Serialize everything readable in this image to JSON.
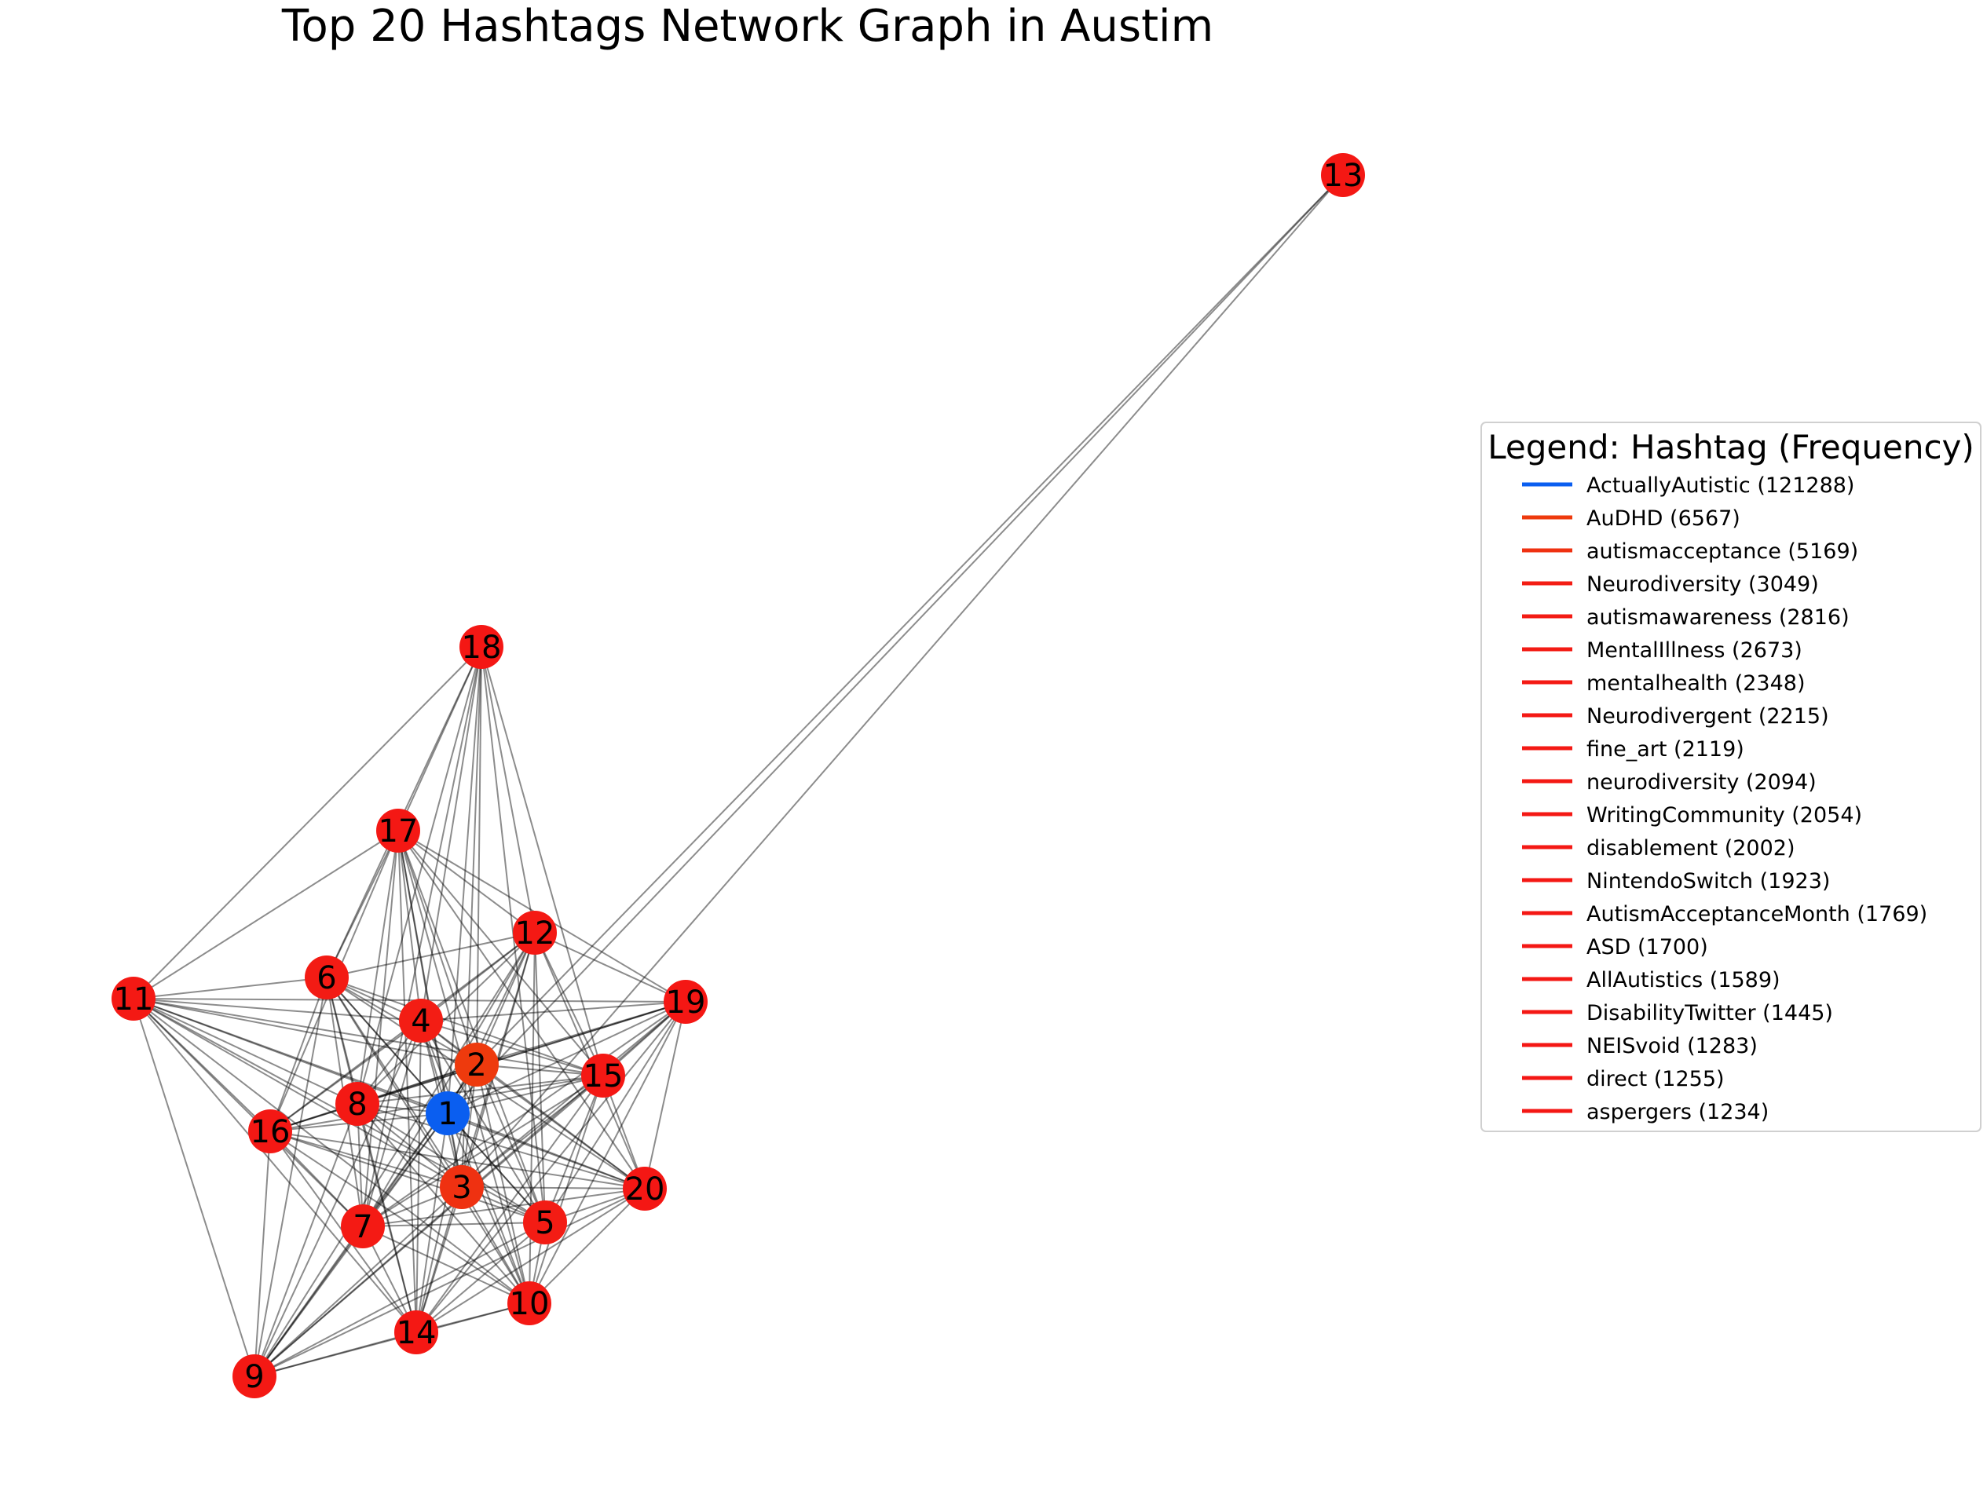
{
  "title": "Top 20 Hashtags Network Graph in Austim",
  "legend": {
    "title": "Legend: Hashtag (Frequency)",
    "placement": "right",
    "entries": [
      {
        "id": 1,
        "label": "ActuallyAutistic (121288)",
        "color": "#0a5ef0"
      },
      {
        "id": 2,
        "label": "AuDHD (6567)",
        "color": "#ee3a0d"
      },
      {
        "id": 3,
        "label": "autismacceptance (5169)",
        "color": "#ef3111"
      },
      {
        "id": 4,
        "label": "Neurodiversity (3049)",
        "color": "#f31d14"
      },
      {
        "id": 5,
        "label": "autismawareness (2816)",
        "color": "#f31c14"
      },
      {
        "id": 6,
        "label": "MentalIllness (2673)",
        "color": "#f31b14"
      },
      {
        "id": 7,
        "label": "mentalhealth (2348)",
        "color": "#f41a14"
      },
      {
        "id": 8,
        "label": "Neurodivergent (2215)",
        "color": "#f41914"
      },
      {
        "id": 9,
        "label": "fine_art (2119)",
        "color": "#f41914"
      },
      {
        "id": 10,
        "label": "neurodiversity (2094)",
        "color": "#f41914"
      },
      {
        "id": 11,
        "label": "WritingCommunity (2054)",
        "color": "#f41914"
      },
      {
        "id": 12,
        "label": "disablement (2002)",
        "color": "#f41914"
      },
      {
        "id": 13,
        "label": "NintendoSwitch (1923)",
        "color": "#f41814"
      },
      {
        "id": 14,
        "label": "AutismAcceptanceMonth (1769)",
        "color": "#f41814"
      },
      {
        "id": 15,
        "label": "ASD (1700)",
        "color": "#f41814"
      },
      {
        "id": 16,
        "label": "AllAutistics (1589)",
        "color": "#f41814"
      },
      {
        "id": 17,
        "label": "DisabilityTwitter (1445)",
        "color": "#f41814"
      },
      {
        "id": 18,
        "label": "NEISvoid (1283)",
        "color": "#f41714"
      },
      {
        "id": 19,
        "label": "direct (1255)",
        "color": "#f41714"
      },
      {
        "id": 20,
        "label": "aspergers (1234)",
        "color": "#f41714"
      }
    ]
  },
  "graph": {
    "nodes": [
      {
        "id": 1,
        "label": "1",
        "color": "#0a5ef0"
      },
      {
        "id": 2,
        "label": "2",
        "color": "#ee3a0d"
      },
      {
        "id": 3,
        "label": "3",
        "color": "#ef3111"
      },
      {
        "id": 4,
        "label": "4",
        "color": "#f31d14"
      },
      {
        "id": 5,
        "label": "5",
        "color": "#f31c14"
      },
      {
        "id": 6,
        "label": "6",
        "color": "#f31b14"
      },
      {
        "id": 7,
        "label": "7",
        "color": "#f41a14"
      },
      {
        "id": 8,
        "label": "8",
        "color": "#f41914"
      },
      {
        "id": 9,
        "label": "9",
        "color": "#f41914"
      },
      {
        "id": 10,
        "label": "10",
        "color": "#f41914"
      },
      {
        "id": 11,
        "label": "11",
        "color": "#f41914"
      },
      {
        "id": 12,
        "label": "12",
        "color": "#f41914"
      },
      {
        "id": 13,
        "label": "13",
        "color": "#f41814"
      },
      {
        "id": 14,
        "label": "14",
        "color": "#f41814"
      },
      {
        "id": 15,
        "label": "15",
        "color": "#f41814"
      },
      {
        "id": 16,
        "label": "16",
        "color": "#f41814"
      },
      {
        "id": 17,
        "label": "17",
        "color": "#f41814"
      },
      {
        "id": 18,
        "label": "18",
        "color": "#f41714"
      },
      {
        "id": 19,
        "label": "19",
        "color": "#f41714"
      },
      {
        "id": 20,
        "label": "20",
        "color": "#f41714"
      }
    ],
    "edges": [
      [
        13,
        1
      ],
      [
        13,
        2
      ],
      [
        13,
        3
      ],
      [
        18,
        11
      ],
      [
        18,
        17
      ],
      [
        18,
        6
      ],
      [
        18,
        4
      ],
      [
        18,
        2
      ],
      [
        18,
        8
      ],
      [
        18,
        1
      ],
      [
        18,
        3
      ],
      [
        18,
        7
      ],
      [
        18,
        5
      ],
      [
        18,
        15
      ],
      [
        18,
        12
      ],
      [
        17,
        11
      ],
      [
        17,
        6
      ],
      [
        17,
        4
      ],
      [
        17,
        2
      ],
      [
        17,
        8
      ],
      [
        17,
        1
      ],
      [
        17,
        16
      ],
      [
        17,
        3
      ],
      [
        17,
        7
      ],
      [
        17,
        5
      ],
      [
        17,
        15
      ],
      [
        17,
        12
      ],
      [
        17,
        19
      ],
      [
        17,
        20
      ],
      [
        17,
        14
      ],
      [
        17,
        10
      ],
      [
        12,
        6
      ],
      [
        12,
        4
      ],
      [
        12,
        2
      ],
      [
        12,
        8
      ],
      [
        12,
        1
      ],
      [
        12,
        16
      ],
      [
        12,
        3
      ],
      [
        12,
        7
      ],
      [
        12,
        5
      ],
      [
        12,
        15
      ],
      [
        12,
        19
      ],
      [
        12,
        20
      ],
      [
        12,
        9
      ],
      [
        12,
        14
      ],
      [
        12,
        10
      ],
      [
        11,
        6
      ],
      [
        11,
        4
      ],
      [
        11,
        2
      ],
      [
        11,
        8
      ],
      [
        11,
        1
      ],
      [
        11,
        16
      ],
      [
        11,
        3
      ],
      [
        11,
        7
      ],
      [
        11,
        5
      ],
      [
        11,
        15
      ],
      [
        11,
        19
      ],
      [
        11,
        9
      ],
      [
        11,
        14
      ],
      [
        11,
        10
      ],
      [
        11,
        20
      ],
      [
        6,
        4
      ],
      [
        6,
        2
      ],
      [
        6,
        8
      ],
      [
        6,
        1
      ],
      [
        6,
        16
      ],
      [
        6,
        3
      ],
      [
        6,
        7
      ],
      [
        6,
        5
      ],
      [
        6,
        15
      ],
      [
        6,
        9
      ],
      [
        6,
        14
      ],
      [
        6,
        10
      ],
      [
        6,
        20
      ],
      [
        4,
        2
      ],
      [
        4,
        8
      ],
      [
        4,
        1
      ],
      [
        4,
        16
      ],
      [
        4,
        3
      ],
      [
        4,
        7
      ],
      [
        4,
        5
      ],
      [
        4,
        15
      ],
      [
        4,
        19
      ],
      [
        4,
        20
      ],
      [
        4,
        9
      ],
      [
        4,
        14
      ],
      [
        4,
        10
      ],
      [
        19,
        2
      ],
      [
        19,
        8
      ],
      [
        19,
        1
      ],
      [
        19,
        16
      ],
      [
        19,
        3
      ],
      [
        19,
        7
      ],
      [
        19,
        5
      ],
      [
        19,
        15
      ],
      [
        19,
        20
      ],
      [
        19,
        9
      ],
      [
        19,
        14
      ],
      [
        19,
        10
      ],
      [
        2,
        8
      ],
      [
        2,
        1
      ],
      [
        2,
        16
      ],
      [
        2,
        3
      ],
      [
        2,
        7
      ],
      [
        2,
        5
      ],
      [
        2,
        15
      ],
      [
        2,
        20
      ],
      [
        2,
        9
      ],
      [
        2,
        14
      ],
      [
        2,
        10
      ],
      [
        15,
        8
      ],
      [
        15,
        1
      ],
      [
        15,
        16
      ],
      [
        15,
        3
      ],
      [
        15,
        7
      ],
      [
        15,
        5
      ],
      [
        15,
        20
      ],
      [
        15,
        9
      ],
      [
        15,
        14
      ],
      [
        15,
        10
      ],
      [
        8,
        1
      ],
      [
        8,
        16
      ],
      [
        8,
        3
      ],
      [
        8,
        7
      ],
      [
        8,
        5
      ],
      [
        8,
        20
      ],
      [
        8,
        9
      ],
      [
        8,
        14
      ],
      [
        8,
        10
      ],
      [
        1,
        16
      ],
      [
        1,
        3
      ],
      [
        1,
        7
      ],
      [
        1,
        5
      ],
      [
        1,
        20
      ],
      [
        1,
        9
      ],
      [
        1,
        14
      ],
      [
        1,
        10
      ],
      [
        16,
        3
      ],
      [
        16,
        7
      ],
      [
        16,
        5
      ],
      [
        16,
        20
      ],
      [
        16,
        9
      ],
      [
        16,
        14
      ],
      [
        16,
        10
      ],
      [
        3,
        7
      ],
      [
        3,
        5
      ],
      [
        3,
        20
      ],
      [
        3,
        9
      ],
      [
        3,
        14
      ],
      [
        3,
        10
      ],
      [
        7,
        5
      ],
      [
        7,
        20
      ],
      [
        7,
        9
      ],
      [
        7,
        14
      ],
      [
        7,
        10
      ],
      [
        5,
        20
      ],
      [
        5,
        9
      ],
      [
        5,
        14
      ],
      [
        5,
        10
      ],
      [
        20,
        9
      ],
      [
        20,
        14
      ],
      [
        20,
        10
      ],
      [
        9,
        14
      ],
      [
        9,
        10
      ],
      [
        14,
        10
      ]
    ]
  }
}
